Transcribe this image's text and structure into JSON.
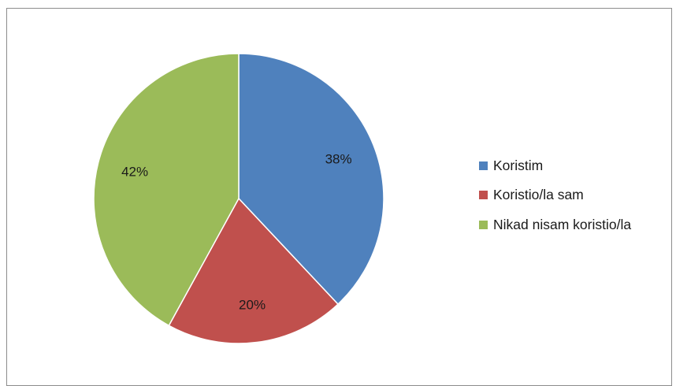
{
  "chart_data": {
    "type": "pie",
    "slices": [
      {
        "name": "Koristim",
        "value": 38,
        "label": "38%",
        "color": "#4f81bd"
      },
      {
        "name": "Koristio/la sam",
        "value": 20,
        "label": "20%",
        "color": "#c0504d"
      },
      {
        "name": "Nikad nisam koristio/la",
        "value": 42,
        "label": "42%",
        "color": "#9bbb59"
      }
    ],
    "start_angle_deg": 0,
    "direction": "clockwise",
    "legend_placement": "right",
    "data_labels": true
  }
}
